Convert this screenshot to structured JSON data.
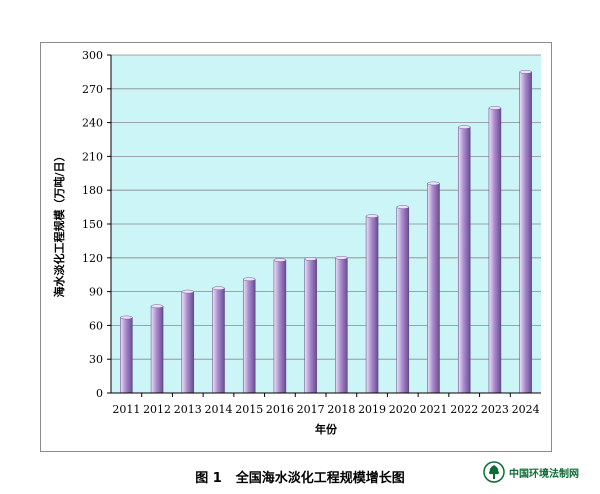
{
  "chart_data": {
    "type": "bar",
    "categories": [
      "2011",
      "2012",
      "2013",
      "2014",
      "2015",
      "2016",
      "2017",
      "2018",
      "2019",
      "2020",
      "2021",
      "2022",
      "2023",
      "2024"
    ],
    "values": [
      67,
      77,
      90,
      93,
      101,
      118,
      119,
      120,
      157,
      165,
      186,
      236,
      253,
      285
    ],
    "xlabel": "年份",
    "ylabel": "海水淡化工程规模（万吨/日）",
    "ylim": [
      0,
      300
    ],
    "yticks": [
      0,
      30,
      60,
      90,
      120,
      150,
      180,
      210,
      240,
      270,
      300
    ],
    "grid": true,
    "legend": "none",
    "colors": {
      "plot_background": "#ccf5f7",
      "bar_light": "#ece2f6",
      "bar_mid": "#a98ccd",
      "bar_dark": "#6a4b93",
      "gridline": "#8a8a8a"
    }
  },
  "caption": {
    "figure_number": "图 1",
    "title": "全国海水淡化工程规模增长图"
  },
  "watermark": {
    "text": "中国环境法制网",
    "logo": "tree-emblem-icon"
  }
}
